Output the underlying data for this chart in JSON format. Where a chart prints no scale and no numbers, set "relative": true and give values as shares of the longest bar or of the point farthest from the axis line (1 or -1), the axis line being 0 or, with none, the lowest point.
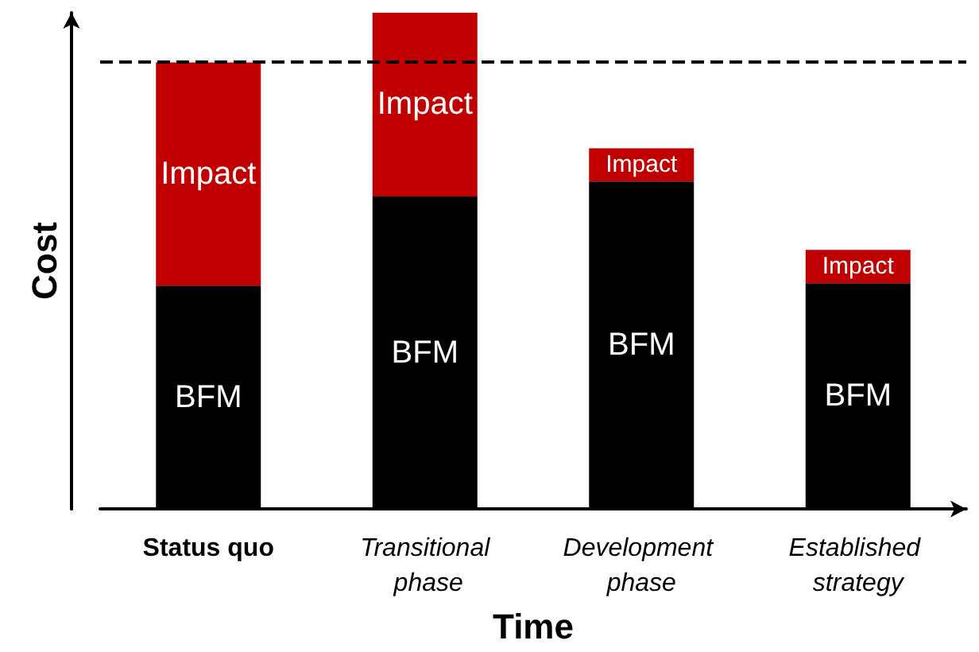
{
  "chart_data": {
    "type": "bar",
    "stacked": true,
    "relative": true,
    "xlabel": "Time",
    "ylabel": "Cost",
    "categories": [
      "Status quo",
      "Transitional phase",
      "Development phase",
      "Established strategy"
    ],
    "series": [
      {
        "name": "BFM",
        "color": "#000000",
        "values": [
          0.45,
          0.63,
          0.66,
          0.455
        ]
      },
      {
        "name": "Impact",
        "color": "#c00000",
        "values": [
          0.45,
          0.37,
          0.067,
          0.067
        ]
      }
    ],
    "ref_lines": [
      {
        "axis": "y",
        "value": 0.9,
        "color": "#000000",
        "line_style": "dashed"
      }
    ]
  }
}
